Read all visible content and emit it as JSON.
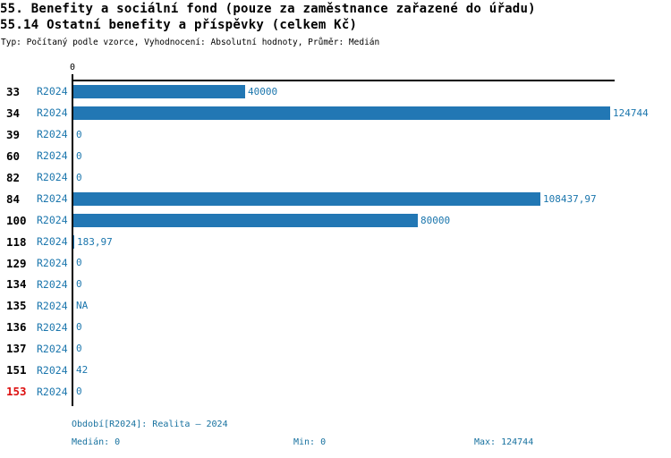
{
  "title": {
    "line1": "55. Benefity a sociální fond (pouze za zaměstnance zařazené do úřadu)",
    "line2": "55.14 Ostatní benefity a příspěvky (celkem Kč)"
  },
  "subtitle": "Typ: Počítaný podle vzorce, Vyhodnocení: Absolutní hodnoty, Průměr: Medián",
  "chart_data": {
    "type": "bar",
    "orientation": "horizontal",
    "title": "55.14 Ostatní benefity a příspěvky (celkem Kč)",
    "series_label": "R2024",
    "categories": [
      "33",
      "34",
      "39",
      "60",
      "82",
      "84",
      "100",
      "118",
      "129",
      "134",
      "135",
      "136",
      "137",
      "151",
      "153"
    ],
    "values": [
      40000,
      124744,
      0,
      0,
      0,
      108437.97,
      80000,
      183.97,
      0,
      0,
      null,
      0,
      0,
      42,
      0
    ],
    "value_labels": [
      "40000",
      "124744",
      "0",
      "0",
      "0",
      "108437,97",
      "80000",
      "183,97",
      "0",
      "0",
      "NA",
      "0",
      "0",
      "42",
      "0"
    ],
    "period_labels": [
      "R2024",
      "R2024",
      "R2024",
      "R2024",
      "R2024",
      "R2024",
      "R2024",
      "R2024",
      "R2024",
      "R2024",
      "R2024",
      "R2024",
      "R2024",
      "R2024",
      "R2024"
    ],
    "x_tick_labels": [
      "0"
    ],
    "xlim": [
      0,
      126000
    ],
    "grid": false,
    "legend": false,
    "highlighted_categories": [
      "153"
    ]
  },
  "footer": {
    "period": "Období[R2024]: Realita – 2024",
    "median": "Medián: 0",
    "min": "Min: 0",
    "max": "Max: 124744"
  },
  "colors": {
    "bar": "#2277b4",
    "blue_text": "#1b76ad",
    "footer_text": "#17719f",
    "highlight_red": "#dd1010",
    "axis": "#000000",
    "background": "#ffffff"
  }
}
